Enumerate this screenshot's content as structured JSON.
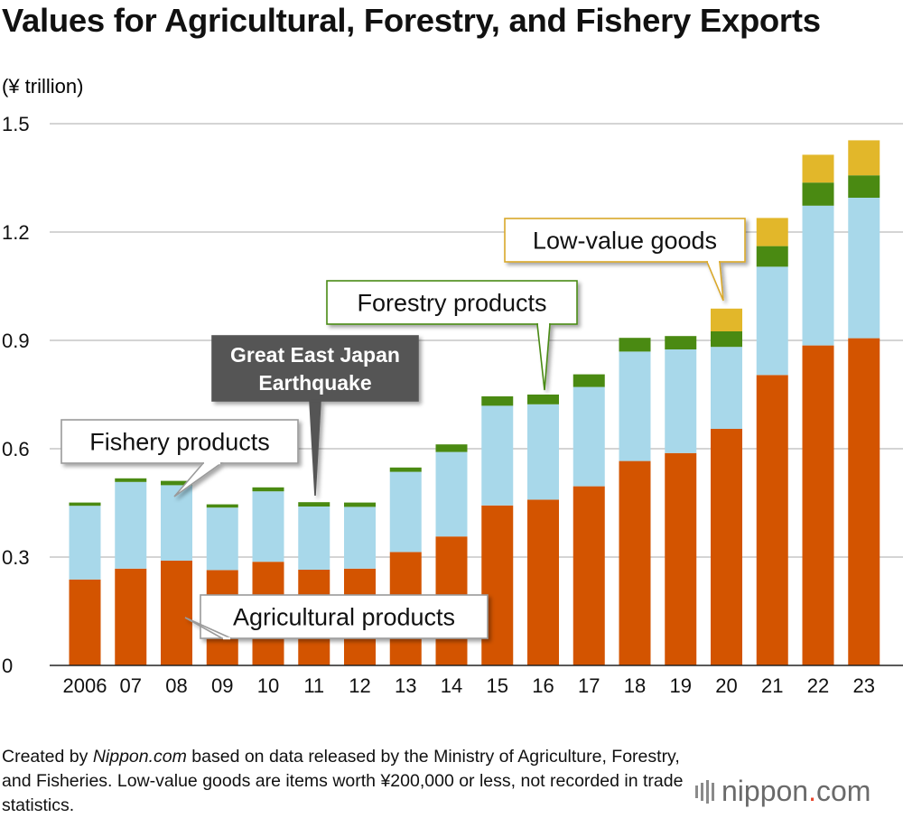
{
  "chart_data": {
    "type": "bar",
    "stacked": true,
    "title": "Values for Agricultural, Forestry, and Fishery Exports",
    "unit_label": "(¥ trillion)",
    "xlabel": "",
    "ylabel": "(¥ trillion)",
    "ylim": [
      0,
      1.5
    ],
    "yticks": [
      "0",
      "0.3",
      "0.6",
      "0.9",
      "1.2",
      "1.5"
    ],
    "ytick_values": [
      0,
      0.3,
      0.6,
      0.9,
      1.2,
      1.5
    ],
    "grid": true,
    "categories": [
      "2006",
      "07",
      "08",
      "09",
      "10",
      "11",
      "12",
      "13",
      "14",
      "15",
      "16",
      "17",
      "18",
      "19",
      "20",
      "21",
      "22",
      "23"
    ],
    "series": [
      {
        "name": "Agricultural products",
        "color": "#d35400",
        "values": [
          0.238,
          0.268,
          0.29,
          0.264,
          0.287,
          0.265,
          0.268,
          0.314,
          0.357,
          0.443,
          0.459,
          0.496,
          0.566,
          0.588,
          0.655,
          0.804,
          0.886,
          0.906
        ]
      },
      {
        "name": "Fishery products",
        "color": "#a8d8ea",
        "values": [
          0.204,
          0.24,
          0.209,
          0.173,
          0.195,
          0.175,
          0.171,
          0.222,
          0.234,
          0.276,
          0.264,
          0.275,
          0.303,
          0.287,
          0.227,
          0.3,
          0.387,
          0.389
        ]
      },
      {
        "name": "Forestry products",
        "color": "#4a8a12",
        "values": [
          0.009,
          0.01,
          0.012,
          0.009,
          0.011,
          0.012,
          0.012,
          0.012,
          0.021,
          0.026,
          0.027,
          0.035,
          0.038,
          0.037,
          0.043,
          0.057,
          0.064,
          0.062
        ]
      },
      {
        "name": "Low-value goods",
        "color": "#e2b72a",
        "values": [
          0,
          0,
          0,
          0,
          0,
          0,
          0,
          0,
          0,
          0,
          0,
          0,
          0,
          0,
          0.063,
          0.078,
          0.077,
          0.097
        ]
      }
    ],
    "annotations": [
      {
        "id": "agri",
        "text": "Agricultural products",
        "series": "Agricultural products",
        "style": "white"
      },
      {
        "id": "fish",
        "text": "Fishery products",
        "series": "Fishery products",
        "style": "white"
      },
      {
        "id": "forest",
        "text": "Forestry products",
        "series": "Forestry products",
        "style": "green"
      },
      {
        "id": "lowvalue",
        "text": "Low-value goods",
        "series": "Low-value goods",
        "style": "yellow"
      },
      {
        "id": "quake",
        "text": "Great East Japan Earthquake",
        "lines": [
          "Great East Japan",
          "Earthquake"
        ],
        "style": "dark"
      }
    ]
  },
  "footer": {
    "note_prefix": "Created by ",
    "note_site": "Nippon.com",
    "note_rest": " based on data released by the Ministry of Agriculture, Forestry, and Fisheries. Low-value goods are items worth ¥200,000 or less, not recorded in trade statistics."
  },
  "logo": {
    "name": "nippon",
    "dot": ".",
    "suffix": "com"
  },
  "colors": {
    "axis": "#222222",
    "grid": "#bbbbbb",
    "quake_box": "#555555",
    "forestry_border": "#4a8a12",
    "lowvalue_border": "#d9a82b",
    "logo_dot": "#e8462c"
  }
}
